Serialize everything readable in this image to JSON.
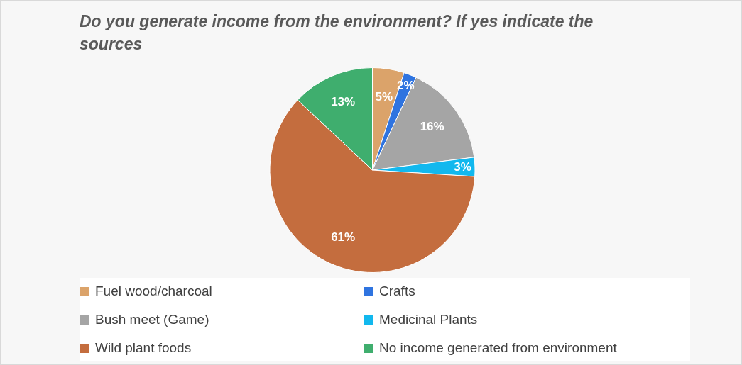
{
  "chart_data": {
    "type": "pie",
    "title": "Do you generate income from the environment? If yes indicate the sources",
    "categories": [
      "Fuel wood/charcoal",
      "Crafts",
      "Bush meet (Game)",
      "Medicinal Plants",
      "Wild plant foods",
      "No income generated from environment"
    ],
    "values": [
      5,
      2,
      16,
      3,
      61,
      13
    ],
    "colors": [
      "#dba36a",
      "#2f74e0",
      "#a5a5a5",
      "#12b8ee",
      "#c46d3e",
      "#3fae6e"
    ],
    "value_labels": [
      "5%",
      "2%",
      "16%",
      "3%",
      "61%",
      "13%"
    ],
    "legend": "bottom"
  }
}
